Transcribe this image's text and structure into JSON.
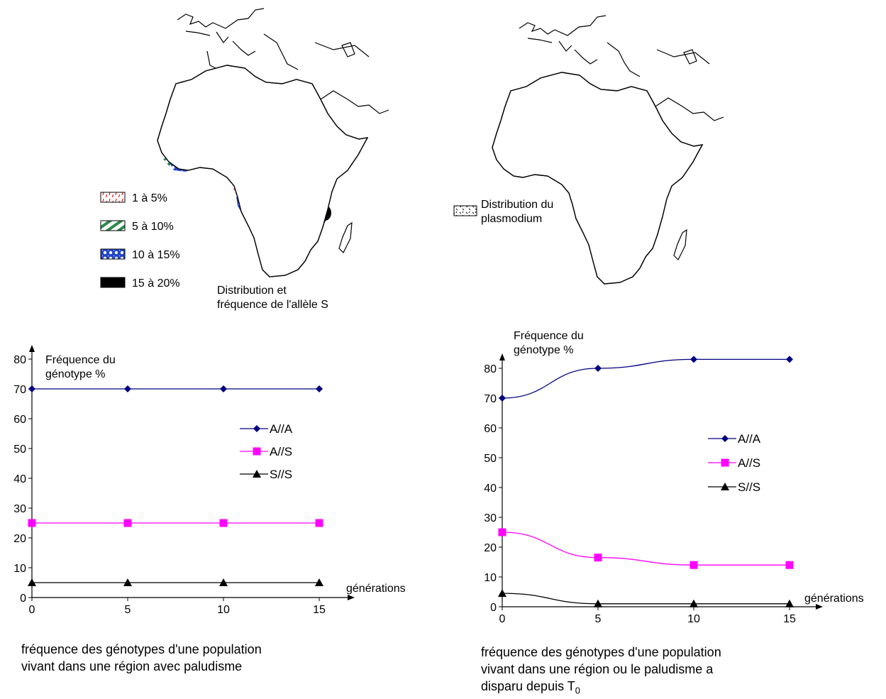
{
  "map_left": {
    "legend": [
      {
        "label": "1 à 5%",
        "pattern": "red-dashes"
      },
      {
        "label": "5 à 10%",
        "pattern": "green-stripes"
      },
      {
        "label": "10 à 15%",
        "pattern": "blue-dots"
      },
      {
        "label": "15 à 20%",
        "pattern": "black-fill"
      }
    ],
    "caption_line1": "Distribution et",
    "caption_line2": "fréquence de l'allèle S"
  },
  "map_right": {
    "legend_line1": "Distribution du",
    "legend_line2": "plasmodium"
  },
  "colors": {
    "aa": "#000080",
    "as": "#ff00ff",
    "ss": "#000000",
    "red": "#e02020",
    "green": "#2a8a4a",
    "blue": "#2244cc"
  },
  "chart_data": [
    {
      "type": "line",
      "ylabel_line1": "Fréquence du",
      "ylabel_line2": "génotype %",
      "xlabel": "générations",
      "x_ticks": [
        "0",
        "5",
        "10",
        "15"
      ],
      "y_ticks": [
        "0",
        "10",
        "20",
        "30",
        "40",
        "50",
        "60",
        "70",
        "80"
      ],
      "xlim": [
        0,
        15
      ],
      "ylim": [
        0,
        80
      ],
      "x": [
        0,
        5,
        10,
        15
      ],
      "series": [
        {
          "name": "A//A",
          "values": [
            70,
            70,
            70,
            70
          ],
          "marker": "diamond",
          "color": "#000080"
        },
        {
          "name": "A//S",
          "values": [
            25,
            25,
            25,
            25
          ],
          "marker": "square",
          "color": "#ff00ff"
        },
        {
          "name": "S//S",
          "values": [
            5,
            5,
            5,
            5
          ],
          "marker": "triangle",
          "color": "#000000"
        }
      ],
      "caption_line1": "fréquence des génotypes d'une population",
      "caption_line2": "vivant dans une région avec paludisme"
    },
    {
      "type": "line",
      "ylabel_line1": "Fréquence du",
      "ylabel_line2": "génotype %",
      "xlabel": "générations",
      "x_ticks": [
        "0",
        "5",
        "10",
        "15"
      ],
      "y_ticks": [
        "0",
        "10",
        "20",
        "30",
        "40",
        "50",
        "60",
        "70",
        "80"
      ],
      "xlim": [
        0,
        15
      ],
      "ylim": [
        0,
        80
      ],
      "x": [
        0,
        5,
        10,
        15
      ],
      "series": [
        {
          "name": "A//A",
          "values": [
            70,
            80,
            83,
            83
          ],
          "marker": "diamond",
          "color": "#000080"
        },
        {
          "name": "A//S",
          "values": [
            25,
            16.5,
            14,
            14
          ],
          "marker": "square",
          "color": "#ff00ff"
        },
        {
          "name": "S//S",
          "values": [
            4.5,
            1,
            1,
            1
          ],
          "marker": "triangle",
          "color": "#000000"
        }
      ],
      "caption_line1": "fréquence des génotypes d'une population",
      "caption_line2": "vivant dans une région ou le paludisme a",
      "caption_line3": "disparu depuis T",
      "caption_sub": "0"
    }
  ]
}
